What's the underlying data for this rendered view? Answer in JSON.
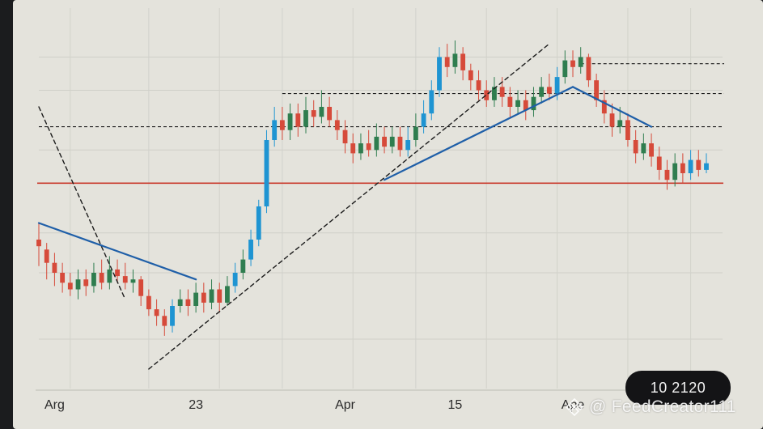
{
  "chart_data": {
    "type": "candlestick",
    "title": "",
    "xlabel": "",
    "ylabel": "",
    "x_tick_labels": [
      {
        "label": "Arg",
        "index": 2
      },
      {
        "label": "23",
        "index": 20
      },
      {
        "label": "Apr",
        "index": 39
      },
      {
        "label": "15",
        "index": 53
      },
      {
        "label": "Ape",
        "index": 68
      }
    ],
    "ylim": [
      0,
      100
    ],
    "grid": true,
    "colors": {
      "up": "#2f7d4f",
      "down": "#d64a3a",
      "surge": "#1e94d2",
      "trend": "#1f5fa8",
      "support": "#c9392b",
      "dashed": "#1c1c1c"
    },
    "candles": [
      [
        40,
        38,
        45,
        32,
        "down"
      ],
      [
        37,
        33,
        39,
        28,
        "down"
      ],
      [
        33,
        30,
        36,
        26,
        "down"
      ],
      [
        30,
        27,
        33,
        24,
        "down"
      ],
      [
        27,
        25,
        30,
        23,
        "down"
      ],
      [
        25,
        28,
        31,
        22,
        "up"
      ],
      [
        28,
        26,
        31,
        23,
        "down"
      ],
      [
        26,
        30,
        33,
        24,
        "up"
      ],
      [
        30,
        27,
        34,
        25,
        "down"
      ],
      [
        27,
        31,
        35,
        25,
        "up"
      ],
      [
        31,
        29,
        34,
        27,
        "down"
      ],
      [
        29,
        27,
        33,
        25,
        "down"
      ],
      [
        27,
        28,
        31,
        24,
        "up"
      ],
      [
        28,
        23,
        29,
        20,
        "down"
      ],
      [
        23,
        19,
        25,
        17,
        "down"
      ],
      [
        19,
        17,
        22,
        14,
        "down"
      ],
      [
        17,
        14,
        19,
        11,
        "down"
      ],
      [
        14,
        20,
        22,
        12,
        "surge"
      ],
      [
        20,
        22,
        25,
        18,
        "up"
      ],
      [
        22,
        20,
        25,
        17,
        "down"
      ],
      [
        20,
        24,
        27,
        18,
        "up"
      ],
      [
        24,
        21,
        27,
        18,
        "down"
      ],
      [
        21,
        25,
        28,
        19,
        "up"
      ],
      [
        25,
        21,
        27,
        18,
        "down"
      ],
      [
        21,
        26,
        29,
        20,
        "up"
      ],
      [
        26,
        30,
        33,
        24,
        "surge"
      ],
      [
        30,
        34,
        37,
        28,
        "up"
      ],
      [
        34,
        40,
        43,
        32,
        "surge"
      ],
      [
        40,
        50,
        52,
        38,
        "surge"
      ],
      [
        50,
        70,
        73,
        48,
        "surge"
      ],
      [
        70,
        76,
        80,
        68,
        "surge"
      ],
      [
        76,
        73,
        80,
        70,
        "down"
      ],
      [
        73,
        78,
        81,
        70,
        "up"
      ],
      [
        78,
        74,
        81,
        71,
        "down"
      ],
      [
        74,
        79,
        83,
        72,
        "up"
      ],
      [
        79,
        77,
        82,
        74,
        "down"
      ],
      [
        77,
        80,
        85,
        75,
        "up"
      ],
      [
        80,
        76,
        83,
        74,
        "down"
      ],
      [
        76,
        73,
        79,
        70,
        "down"
      ],
      [
        73,
        69,
        76,
        66,
        "down"
      ],
      [
        69,
        66,
        72,
        63,
        "down"
      ],
      [
        66,
        69,
        72,
        64,
        "up"
      ],
      [
        69,
        67,
        73,
        65,
        "down"
      ],
      [
        67,
        71,
        75,
        65,
        "up"
      ],
      [
        71,
        68,
        74,
        66,
        "down"
      ],
      [
        68,
        71,
        74,
        66,
        "up"
      ],
      [
        71,
        67,
        74,
        65,
        "down"
      ],
      [
        67,
        70,
        74,
        65,
        "surge"
      ],
      [
        70,
        74,
        78,
        68,
        "up"
      ],
      [
        74,
        78,
        82,
        72,
        "surge"
      ],
      [
        78,
        85,
        88,
        76,
        "surge"
      ],
      [
        85,
        95,
        98,
        83,
        "surge"
      ],
      [
        95,
        92,
        99,
        89,
        "down"
      ],
      [
        92,
        96,
        100,
        90,
        "up"
      ],
      [
        96,
        91,
        98,
        88,
        "down"
      ],
      [
        91,
        88,
        93,
        85,
        "down"
      ],
      [
        88,
        85,
        91,
        82,
        "down"
      ],
      [
        85,
        82,
        88,
        80,
        "down"
      ],
      [
        82,
        86,
        89,
        80,
        "up"
      ],
      [
        86,
        83,
        89,
        80,
        "down"
      ],
      [
        83,
        80,
        86,
        77,
        "down"
      ],
      [
        80,
        82,
        85,
        78,
        "up"
      ],
      [
        82,
        79,
        85,
        76,
        "down"
      ],
      [
        79,
        83,
        86,
        77,
        "up"
      ],
      [
        83,
        86,
        89,
        81,
        "up"
      ],
      [
        86,
        84,
        90,
        82,
        "down"
      ],
      [
        84,
        89,
        92,
        82,
        "surge"
      ],
      [
        89,
        94,
        97,
        87,
        "up"
      ],
      [
        94,
        92,
        97,
        89,
        "down"
      ],
      [
        92,
        95,
        98,
        90,
        "up"
      ],
      [
        95,
        88,
        96,
        86,
        "down"
      ],
      [
        88,
        82,
        90,
        80,
        "down"
      ],
      [
        82,
        78,
        85,
        75,
        "down"
      ],
      [
        78,
        74,
        81,
        71,
        "down"
      ],
      [
        74,
        76,
        80,
        72,
        "up"
      ],
      [
        76,
        70,
        78,
        68,
        "down"
      ],
      [
        70,
        66,
        73,
        63,
        "down"
      ],
      [
        66,
        69,
        72,
        64,
        "up"
      ],
      [
        69,
        65,
        72,
        62,
        "down"
      ],
      [
        65,
        61,
        68,
        58,
        "down"
      ],
      [
        61,
        58,
        64,
        55,
        "down"
      ],
      [
        58,
        63,
        66,
        56,
        "up"
      ],
      [
        63,
        60,
        66,
        57,
        "down"
      ],
      [
        60,
        64,
        67,
        58,
        "surge"
      ],
      [
        64,
        61,
        67,
        59,
        "down"
      ],
      [
        61,
        63,
        66,
        60,
        "surge"
      ]
    ],
    "horizontal_levels": [
      {
        "value": 93,
        "style": "dashed",
        "range": [
          69,
          86
        ]
      },
      {
        "value": 84,
        "style": "dashed",
        "range": [
          31,
          86
        ]
      },
      {
        "value": 74,
        "style": "dashed",
        "range": [
          0,
          86
        ]
      },
      {
        "value": 57,
        "style": "solid-red",
        "range": [
          0,
          86
        ]
      }
    ],
    "trendlines": [
      {
        "style": "dashed",
        "from": [
          0,
          80
        ],
        "to": [
          11,
          22
        ]
      },
      {
        "style": "dashed",
        "from": [
          14,
          1
        ],
        "to": [
          65,
          99
        ]
      },
      {
        "style": "solid-blue",
        "from": [
          0,
          45
        ],
        "to": [
          20,
          28
        ]
      },
      {
        "style": "solid-blue",
        "from": [
          44,
          58
        ],
        "to": [
          68,
          86
        ]
      },
      {
        "style": "solid-blue",
        "from": [
          68,
          86
        ],
        "to": [
          78,
          74
        ]
      }
    ],
    "grid_levels": [
      95,
      85,
      67,
      42,
      30,
      10
    ],
    "grid_vlines": [
      4,
      14,
      23,
      31,
      40,
      48,
      57,
      66,
      75,
      83
    ],
    "annotations": []
  },
  "price_badge": "10 2120",
  "watermark": {
    "text": "@ FeedCreator111",
    "icon": "binance-square-icon"
  }
}
